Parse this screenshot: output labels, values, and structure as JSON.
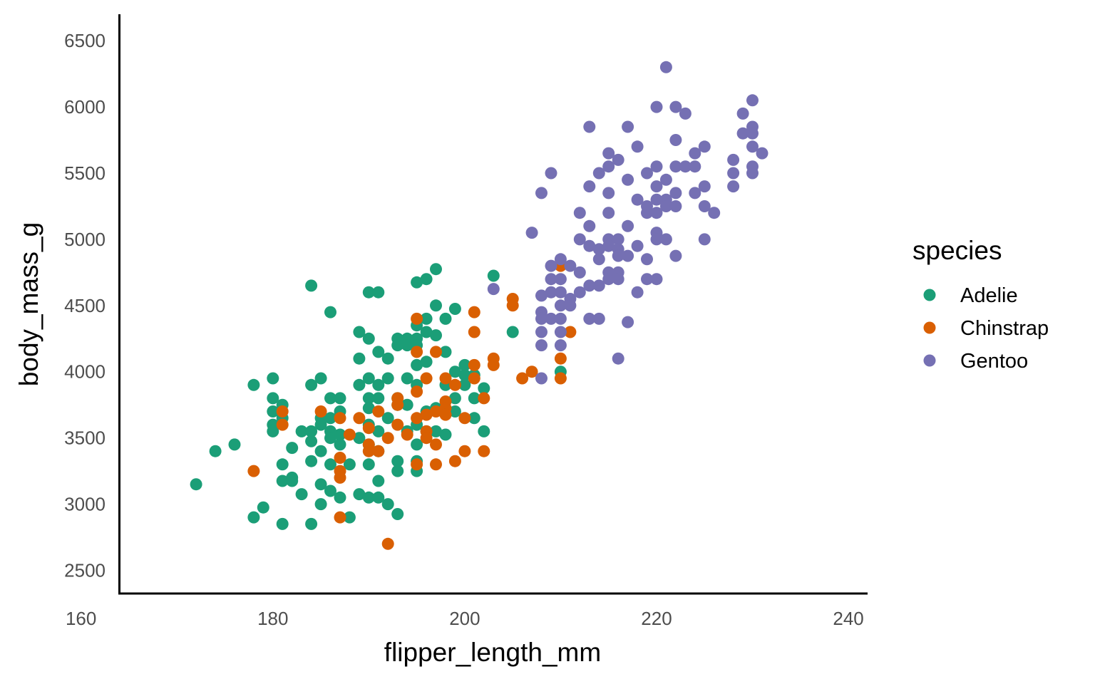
{
  "chart_data": {
    "type": "scatter",
    "xlabel": "flipper_length_mm",
    "ylabel": "body_mass_g",
    "xlim": [
      164,
      242
    ],
    "ylim": [
      2325,
      6700
    ],
    "x_ticks": [
      160,
      180,
      200,
      220,
      240
    ],
    "y_ticks": [
      2500,
      3000,
      3500,
      4000,
      4500,
      5000,
      5500,
      6000,
      6500
    ],
    "grid": false,
    "legend": {
      "title": "species",
      "position": "right"
    },
    "series": [
      {
        "name": "Adelie",
        "color": "#1b9e77",
        "points": [
          [
            172,
            3150
          ],
          [
            174,
            3400
          ],
          [
            176,
            3450
          ],
          [
            178,
            3900
          ],
          [
            178,
            2900
          ],
          [
            179,
            2975
          ],
          [
            180,
            3950
          ],
          [
            180,
            3800
          ],
          [
            180,
            3700
          ],
          [
            180,
            3600
          ],
          [
            180,
            3550
          ],
          [
            181,
            3750
          ],
          [
            181,
            3650
          ],
          [
            181,
            3300
          ],
          [
            181,
            3175
          ],
          [
            181,
            2850
          ],
          [
            182,
            3425
          ],
          [
            182,
            3200
          ],
          [
            182,
            3175
          ],
          [
            183,
            3550
          ],
          [
            183,
            3075
          ],
          [
            184,
            4650
          ],
          [
            184,
            3900
          ],
          [
            184,
            3550
          ],
          [
            184,
            3475
          ],
          [
            184,
            3325
          ],
          [
            184,
            2850
          ],
          [
            185,
            3950
          ],
          [
            185,
            3650
          ],
          [
            185,
            3600
          ],
          [
            185,
            3400
          ],
          [
            185,
            3150
          ],
          [
            185,
            3000
          ],
          [
            186,
            4450
          ],
          [
            186,
            3800
          ],
          [
            186,
            3650
          ],
          [
            186,
            3550
          ],
          [
            186,
            3500
          ],
          [
            186,
            3300
          ],
          [
            186,
            3100
          ],
          [
            187,
            3800
          ],
          [
            187,
            3700
          ],
          [
            187,
            3525
          ],
          [
            187,
            3450
          ],
          [
            187,
            3050
          ],
          [
            188,
            3300
          ],
          [
            188,
            2900
          ],
          [
            189,
            4300
          ],
          [
            189,
            4100
          ],
          [
            189,
            3900
          ],
          [
            189,
            3500
          ],
          [
            189,
            3075
          ],
          [
            190,
            4600
          ],
          [
            190,
            4250
          ],
          [
            190,
            3950
          ],
          [
            190,
            3800
          ],
          [
            190,
            3725
          ],
          [
            190,
            3600
          ],
          [
            190,
            3450
          ],
          [
            190,
            3300
          ],
          [
            190,
            3050
          ],
          [
            191,
            4600
          ],
          [
            191,
            4150
          ],
          [
            191,
            3900
          ],
          [
            191,
            3800
          ],
          [
            191,
            3550
          ],
          [
            191,
            3400
          ],
          [
            191,
            3175
          ],
          [
            191,
            3050
          ],
          [
            192,
            4100
          ],
          [
            192,
            3950
          ],
          [
            192,
            3650
          ],
          [
            192,
            3000
          ],
          [
            193,
            4250
          ],
          [
            193,
            4200
          ],
          [
            193,
            3800
          ],
          [
            193,
            3750
          ],
          [
            193,
            3325
          ],
          [
            193,
            3250
          ],
          [
            193,
            2925
          ],
          [
            194,
            4250
          ],
          [
            194,
            4200
          ],
          [
            194,
            3950
          ],
          [
            194,
            3750
          ],
          [
            194,
            3550
          ],
          [
            195,
            4675
          ],
          [
            195,
            4350
          ],
          [
            195,
            4250
          ],
          [
            195,
            4200
          ],
          [
            195,
            4050
          ],
          [
            195,
            3900
          ],
          [
            195,
            3600
          ],
          [
            195,
            3450
          ],
          [
            195,
            3325
          ],
          [
            195,
            3250
          ],
          [
            196,
            4700
          ],
          [
            196,
            4400
          ],
          [
            196,
            4300
          ],
          [
            196,
            4075
          ],
          [
            196,
            3700
          ],
          [
            196,
            3550
          ],
          [
            197,
            4775
          ],
          [
            197,
            4500
          ],
          [
            197,
            4275
          ],
          [
            197,
            3725
          ],
          [
            197,
            3550
          ],
          [
            198,
            4400
          ],
          [
            198,
            4150
          ],
          [
            198,
            3900
          ],
          [
            198,
            3525
          ],
          [
            199,
            4475
          ],
          [
            199,
            4000
          ],
          [
            199,
            3800
          ],
          [
            199,
            3700
          ],
          [
            200,
            4050
          ],
          [
            200,
            3975
          ],
          [
            200,
            3900
          ],
          [
            201,
            3975
          ],
          [
            201,
            3800
          ],
          [
            201,
            3650
          ],
          [
            202,
            3875
          ],
          [
            202,
            3550
          ],
          [
            203,
            4725
          ],
          [
            205,
            4300
          ],
          [
            210,
            4000
          ]
        ]
      },
      {
        "name": "Chinstrap",
        "color": "#d95f02",
        "points": [
          [
            178,
            3250
          ],
          [
            181,
            3700
          ],
          [
            181,
            3600
          ],
          [
            185,
            3700
          ],
          [
            187,
            3650
          ],
          [
            187,
            3350
          ],
          [
            187,
            3250
          ],
          [
            187,
            3200
          ],
          [
            187,
            2900
          ],
          [
            188,
            3525
          ],
          [
            189,
            3650
          ],
          [
            190,
            3575
          ],
          [
            190,
            3450
          ],
          [
            190,
            3400
          ],
          [
            191,
            3700
          ],
          [
            191,
            3400
          ],
          [
            192,
            3500
          ],
          [
            192,
            2700
          ],
          [
            193,
            3800
          ],
          [
            193,
            3750
          ],
          [
            193,
            3600
          ],
          [
            194,
            3525
          ],
          [
            195,
            4400
          ],
          [
            195,
            4150
          ],
          [
            195,
            3850
          ],
          [
            195,
            3650
          ],
          [
            195,
            3300
          ],
          [
            196,
            3950
          ],
          [
            196,
            3675
          ],
          [
            196,
            3550
          ],
          [
            196,
            3500
          ],
          [
            197,
            4150
          ],
          [
            197,
            3700
          ],
          [
            197,
            3450
          ],
          [
            197,
            3300
          ],
          [
            198,
            3950
          ],
          [
            198,
            3775
          ],
          [
            198,
            3725
          ],
          [
            198,
            3675
          ],
          [
            199,
            3900
          ],
          [
            199,
            3325
          ],
          [
            200,
            3650
          ],
          [
            200,
            3400
          ],
          [
            201,
            4450
          ],
          [
            201,
            4300
          ],
          [
            201,
            4050
          ],
          [
            201,
            3950
          ],
          [
            202,
            3800
          ],
          [
            202,
            3400
          ],
          [
            203,
            4100
          ],
          [
            203,
            4050
          ],
          [
            205,
            4550
          ],
          [
            205,
            4500
          ],
          [
            206,
            3950
          ],
          [
            207,
            4000
          ],
          [
            210,
            4800
          ],
          [
            210,
            4100
          ],
          [
            210,
            3950
          ],
          [
            211,
            4300
          ]
        ]
      },
      {
        "name": "Gentoo",
        "color": "#7570b3",
        "points": [
          [
            203,
            4625
          ],
          [
            207,
            5050
          ],
          [
            208,
            5350
          ],
          [
            208,
            4575
          ],
          [
            208,
            4450
          ],
          [
            208,
            4400
          ],
          [
            208,
            4300
          ],
          [
            208,
            4200
          ],
          [
            208,
            3950
          ],
          [
            209,
            5500
          ],
          [
            209,
            4800
          ],
          [
            209,
            4700
          ],
          [
            209,
            4600
          ],
          [
            209,
            4400
          ],
          [
            210,
            4850
          ],
          [
            210,
            4700
          ],
          [
            210,
            4600
          ],
          [
            210,
            4500
          ],
          [
            210,
            4400
          ],
          [
            210,
            4300
          ],
          [
            210,
            4200
          ],
          [
            211,
            4800
          ],
          [
            211,
            4550
          ],
          [
            211,
            4500
          ],
          [
            212,
            5200
          ],
          [
            212,
            5000
          ],
          [
            212,
            4750
          ],
          [
            212,
            4600
          ],
          [
            213,
            5850
          ],
          [
            213,
            5400
          ],
          [
            213,
            5100
          ],
          [
            213,
            4950
          ],
          [
            213,
            4650
          ],
          [
            213,
            4400
          ],
          [
            214,
            5500
          ],
          [
            214,
            4925
          ],
          [
            214,
            4850
          ],
          [
            214,
            4650
          ],
          [
            214,
            4400
          ],
          [
            215,
            5650
          ],
          [
            215,
            5550
          ],
          [
            215,
            5350
          ],
          [
            215,
            5200
          ],
          [
            215,
            5000
          ],
          [
            215,
            4950
          ],
          [
            215,
            4750
          ],
          [
            215,
            4700
          ],
          [
            216,
            5600
          ],
          [
            216,
            5000
          ],
          [
            216,
            4925
          ],
          [
            216,
            4875
          ],
          [
            216,
            4750
          ],
          [
            216,
            4700
          ],
          [
            216,
            4100
          ],
          [
            217,
            5850
          ],
          [
            217,
            5450
          ],
          [
            217,
            5100
          ],
          [
            217,
            4875
          ],
          [
            217,
            4375
          ],
          [
            218,
            5700
          ],
          [
            218,
            5300
          ],
          [
            218,
            4950
          ],
          [
            218,
            4600
          ],
          [
            219,
            5500
          ],
          [
            219,
            5250
          ],
          [
            219,
            5200
          ],
          [
            219,
            4850
          ],
          [
            219,
            4700
          ],
          [
            220,
            6000
          ],
          [
            220,
            5550
          ],
          [
            220,
            5400
          ],
          [
            220,
            5300
          ],
          [
            220,
            5200
          ],
          [
            220,
            5050
          ],
          [
            220,
            5000
          ],
          [
            220,
            4700
          ],
          [
            221,
            6300
          ],
          [
            221,
            5450
          ],
          [
            221,
            5300
          ],
          [
            221,
            5250
          ],
          [
            221,
            5000
          ],
          [
            222,
            6000
          ],
          [
            222,
            5750
          ],
          [
            222,
            5550
          ],
          [
            222,
            5350
          ],
          [
            222,
            5250
          ],
          [
            222,
            4875
          ],
          [
            223,
            5950
          ],
          [
            223,
            5550
          ],
          [
            224,
            5650
          ],
          [
            224,
            5550
          ],
          [
            224,
            5350
          ],
          [
            225,
            5700
          ],
          [
            225,
            5400
          ],
          [
            225,
            5250
          ],
          [
            225,
            5000
          ],
          [
            226,
            5200
          ],
          [
            228,
            5600
          ],
          [
            228,
            5500
          ],
          [
            228,
            5400
          ],
          [
            229,
            5950
          ],
          [
            229,
            5800
          ],
          [
            230,
            6050
          ],
          [
            230,
            5850
          ],
          [
            230,
            5800
          ],
          [
            230,
            5700
          ],
          [
            230,
            5550
          ],
          [
            230,
            5500
          ],
          [
            231,
            5650
          ]
        ]
      }
    ]
  }
}
